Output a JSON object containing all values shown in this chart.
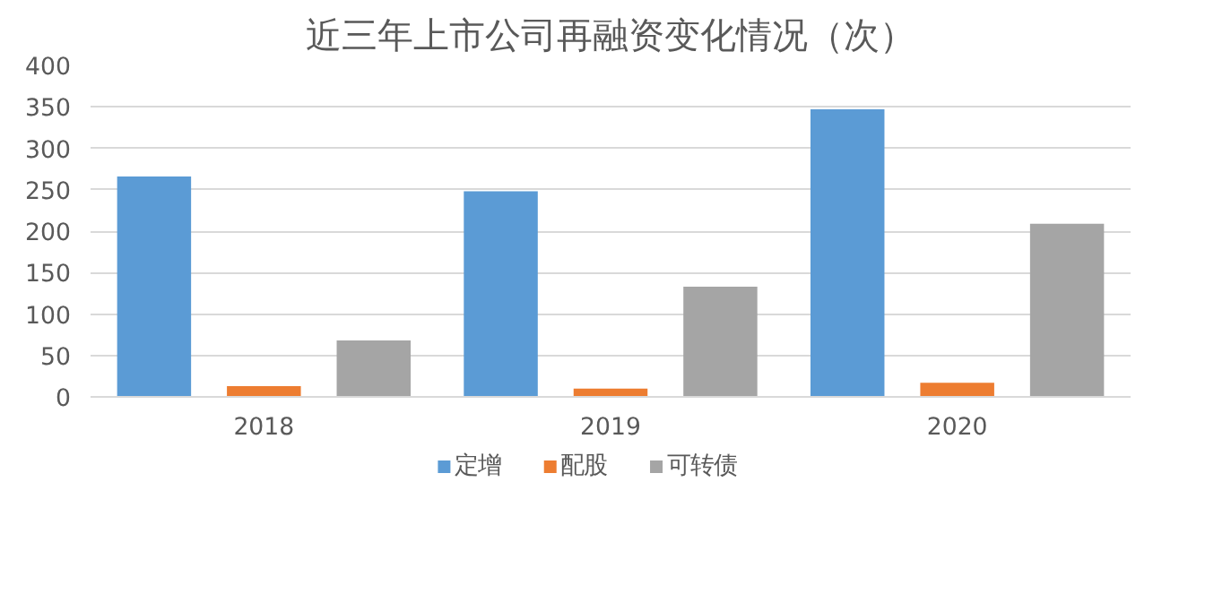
{
  "chart_data": {
    "type": "bar",
    "title": "近三年上市公司再融资变化情况（次）",
    "categories": [
      "2018",
      "2019",
      "2020"
    ],
    "series": [
      {
        "name": "定增",
        "color": "#5b9bd5",
        "values": [
          266,
          248,
          347
        ]
      },
      {
        "name": "配股",
        "color": "#ed7d31",
        "values": [
          13,
          10,
          17
        ]
      },
      {
        "name": "可转债",
        "color": "#a5a5a5",
        "values": [
          68,
          133,
          209
        ]
      }
    ],
    "ylim": [
      0,
      400
    ],
    "yticks": [
      0,
      50,
      100,
      150,
      200,
      250,
      300,
      350,
      400
    ],
    "grid": "y",
    "legend": "bottom"
  }
}
